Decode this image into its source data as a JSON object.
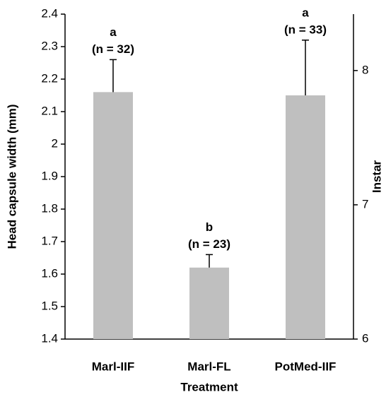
{
  "chart_data": {
    "type": "bar",
    "x_label": "Treatment",
    "y_label": "Head capsule width (mm)",
    "y2_label": "Instar",
    "categories": [
      "Marl-IIF",
      "Marl-FL",
      "PotMed-IIF"
    ],
    "values": [
      2.16,
      1.62,
      2.15
    ],
    "errors": [
      0.1,
      0.04,
      0.17
    ],
    "letters": [
      "a",
      "b",
      "a"
    ],
    "n_labels": [
      "(n = 32)",
      "(n = 23)",
      "(n = 33)"
    ],
    "color": "#bfbfbf",
    "ylim": [
      1.4,
      2.4
    ],
    "yticks": [
      1.4,
      1.5,
      1.6,
      1.7,
      1.8,
      1.9,
      2,
      2.1,
      2.2,
      2.3,
      2.4
    ],
    "y2lim": [
      6,
      8.42
    ],
    "y2ticks": [
      6,
      7,
      8
    ],
    "grid": false
  }
}
